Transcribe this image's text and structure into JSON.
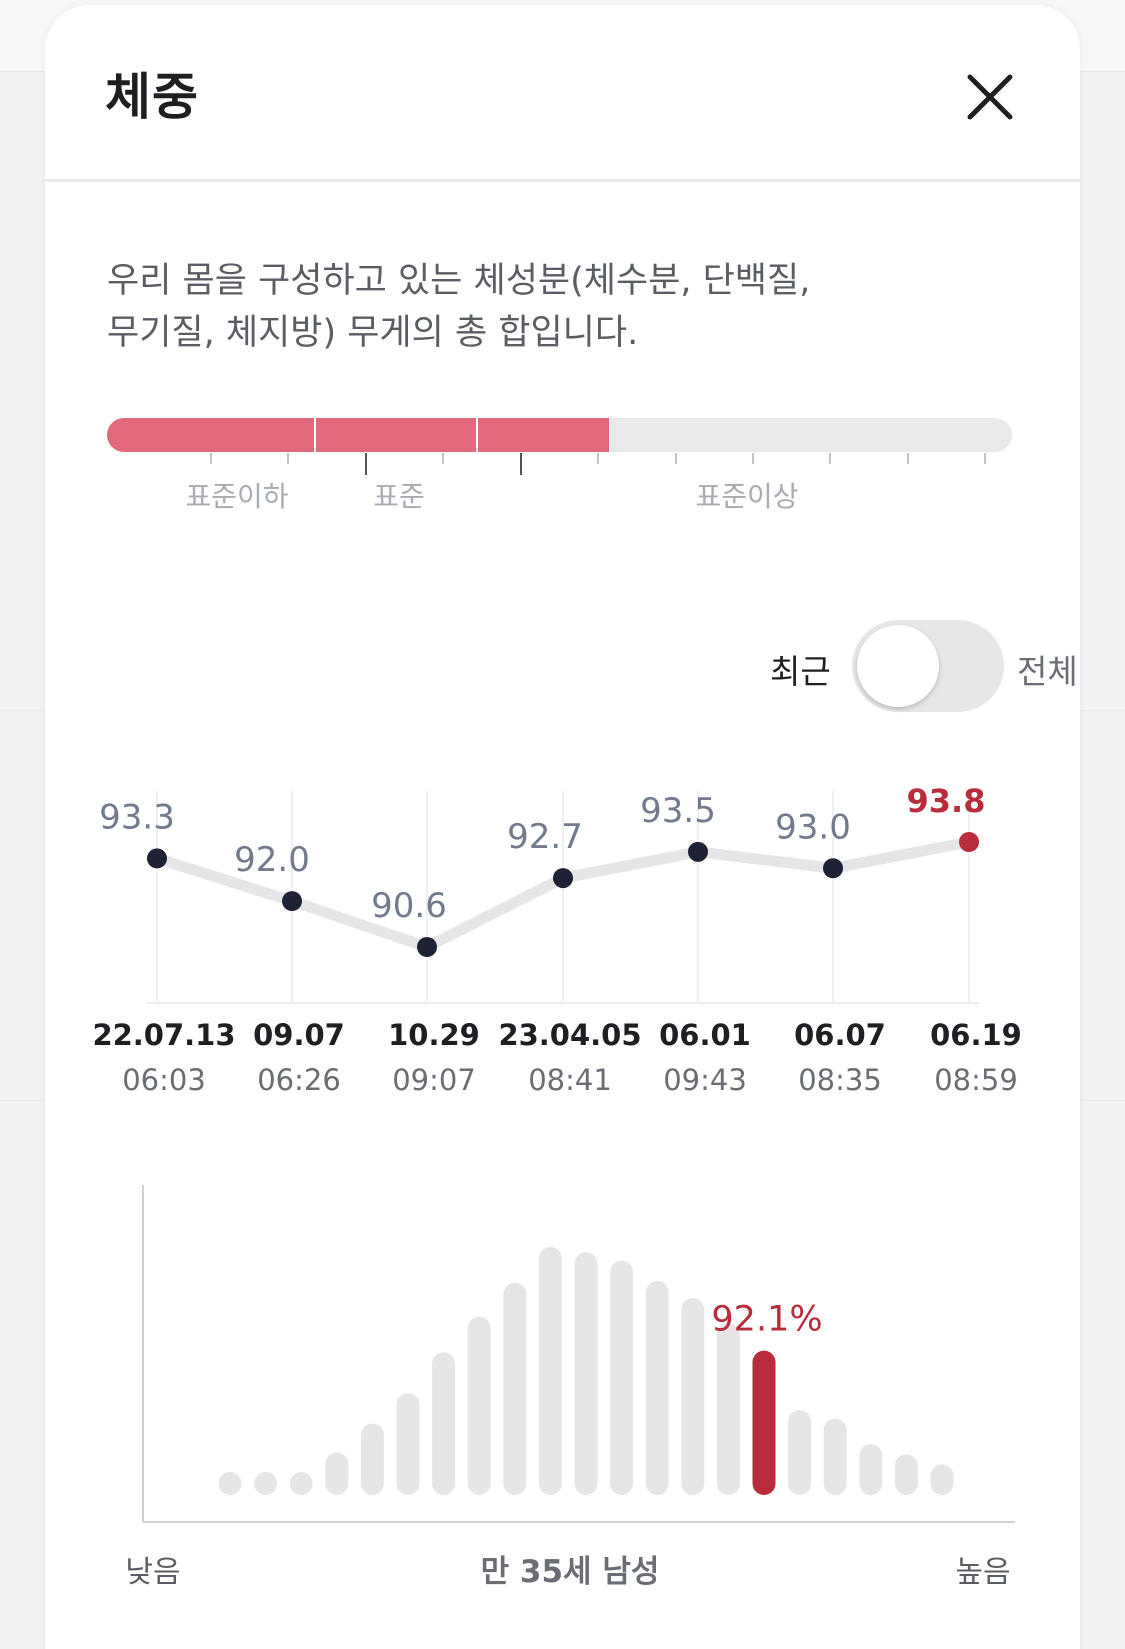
{
  "modal": {
    "title": "체중",
    "description_line1": "우리 몸을 구성하고 있는 체성분(체수분, 단백질,",
    "description_line2": "무기질, 체지방) 무게의 총 합입니다."
  },
  "gauge": {
    "level": 0.555,
    "labels": [
      "표준이하",
      "표준",
      "표준이상"
    ]
  },
  "toggle": {
    "left_label": "최근",
    "right_label": "전체",
    "selected": "최근"
  },
  "colors": {
    "accent_red": "#b92c3b",
    "gauge_fill": "#e2697b",
    "point": "#1f2235",
    "track": "#e6e6e8"
  },
  "chart_data": [
    {
      "type": "line",
      "x_dates": [
        "22.07.13",
        "09.07",
        "10.29",
        "23.04.05",
        "06.01",
        "06.07",
        "06.19"
      ],
      "x_times": [
        "06:03",
        "06:26",
        "09:07",
        "08:41",
        "09:43",
        "08:35",
        "08:59"
      ],
      "values": [
        93.3,
        92.0,
        90.6,
        92.7,
        93.5,
        93.0,
        93.8
      ],
      "value_labels": [
        "93.3",
        "92.0",
        "90.6",
        "92.7",
        "93.5",
        "93.0",
        "93.8"
      ],
      "highlight_index": 6
    },
    {
      "type": "bar",
      "values": [
        1,
        1,
        1.3,
        2.5,
        4.2,
        6.0,
        8.4,
        10.5,
        12.5,
        14.6,
        14.3,
        13.8,
        12.6,
        11.6,
        10.1,
        8.5,
        5.0,
        4.5,
        3.0,
        2.4,
        1.8
      ],
      "highlight_index": 15,
      "highlight_label": "92.1%",
      "xlabel_left": "낮음",
      "xlabel_center": "만 35세 남성",
      "xlabel_right": "높음"
    }
  ]
}
